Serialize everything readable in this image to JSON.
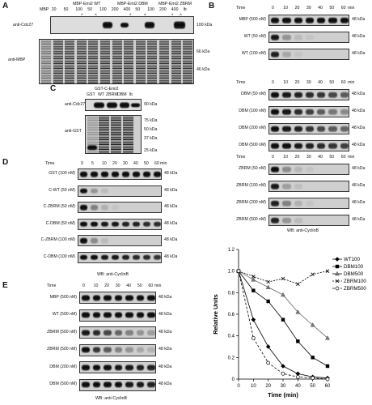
{
  "panel_letters": {
    "a": "A",
    "b": "B",
    "c": "C",
    "d": "D",
    "e": "E"
  },
  "panel_a": {
    "group_labels": [
      "MBP-Emi2 WT",
      "MBP-Emi2 DBM",
      "MBP-Emi2 ZBRM"
    ],
    "lanes": [
      "MBP",
      "20",
      "50",
      "100",
      "50",
      "100",
      "200",
      "400",
      "50",
      "100",
      "200",
      "400",
      "lb"
    ],
    "markers": [
      "*",
      "^",
      "*",
      "^",
      "*",
      "^"
    ],
    "row_labels": [
      "anti-Cdc27",
      "anti-MBP"
    ],
    "mw": [
      "100 kDa",
      "66 kDa",
      "46 kDa"
    ]
  },
  "panel_b": {
    "time_label": "Time",
    "times": [
      "0",
      "10",
      "20",
      "30",
      "40",
      "50",
      "60"
    ],
    "unit": "min",
    "blocks": [
      [
        "MBP (500 nM)",
        "WT (50 nM)",
        "WT (100 nM)"
      ],
      [
        "DBM (50 nM)",
        "DBM (100 nM)",
        "DBM (200 nM)",
        "DBM (500 nM)"
      ],
      [
        "ZBRM (50 nM)",
        "ZBRM (100 nM)",
        "ZBRM (200 nM)",
        "ZBRM (500 nM)"
      ]
    ],
    "mw": "48 kDa",
    "footer": "WB: anti-CyclinB"
  },
  "panel_c": {
    "header": "GST-C-Emi2",
    "lanes": [
      "GST",
      "WT",
      "ZBRM",
      "DBM",
      "lb"
    ],
    "row_labels": [
      "anti-Cdc27",
      "anti-GST"
    ],
    "mw_top": "90 kDa",
    "mw_bottom": [
      "75 kDa",
      "50 kDa",
      "37 kDa",
      "25 kDa"
    ]
  },
  "panel_d": {
    "time_label": "Time",
    "times": [
      "0",
      "5",
      "10",
      "20",
      "30",
      "40",
      "50",
      "60"
    ],
    "unit": "min",
    "rows": [
      "GST (100 nM)",
      "C-WT (50 nM)",
      "C-ZBRM (50 nM)",
      "C-DBM (50 nM)",
      "C-ZBRM (100 nM)",
      "C-DBM (100 nM)"
    ],
    "mw": "48 kDa",
    "footer": "WB: anti-CyclinB"
  },
  "panel_e": {
    "time_label": "Time",
    "times": [
      "0",
      "10",
      "20",
      "30",
      "40",
      "50",
      "60"
    ],
    "unit": "min",
    "rows": [
      "MBP (500 nM)",
      "WT (500 nM)",
      "ZBRM (500 nM)",
      "ZBRM (500 nM)",
      "DBM (200 nM)",
      "DBM (500 nM)"
    ],
    "mw": "48 kDa",
    "footer": "WB: anti-CyclinB"
  },
  "chart_data": {
    "type": "line",
    "xlabel": "Time (min)",
    "ylabel": "Relative Units",
    "x": [
      0,
      10,
      20,
      30,
      40,
      50,
      60
    ],
    "xlim": [
      0,
      60
    ],
    "ylim": [
      0,
      1.2
    ],
    "yticks": [
      "0",
      "0.2",
      "0.4",
      "0.6",
      "0.8",
      "1.0",
      "1.2"
    ],
    "xticks": [
      "0",
      "10",
      "20",
      "30",
      "40",
      "50",
      "60"
    ],
    "legend_position": "right",
    "series": [
      {
        "name": "WT100",
        "marker": "diamond",
        "values": [
          1.0,
          0.55,
          0.3,
          0.12,
          0.05,
          0.02,
          0.01
        ]
      },
      {
        "name": "DBM100",
        "marker": "square",
        "values": [
          1.0,
          0.82,
          0.72,
          0.55,
          0.35,
          0.2,
          0.12
        ]
      },
      {
        "name": "DBM500",
        "marker": "triangle",
        "values": [
          1.0,
          0.92,
          0.85,
          0.78,
          0.62,
          0.5,
          0.38
        ]
      },
      {
        "name": "ZBRM100",
        "marker": "x",
        "values": [
          1.0,
          0.95,
          0.9,
          0.93,
          0.88,
          0.97,
          1.0
        ]
      },
      {
        "name": "ZBRM500",
        "marker": "circle",
        "values": [
          1.0,
          0.38,
          0.15,
          0.05,
          0.02,
          0.01,
          0.0
        ]
      }
    ]
  }
}
